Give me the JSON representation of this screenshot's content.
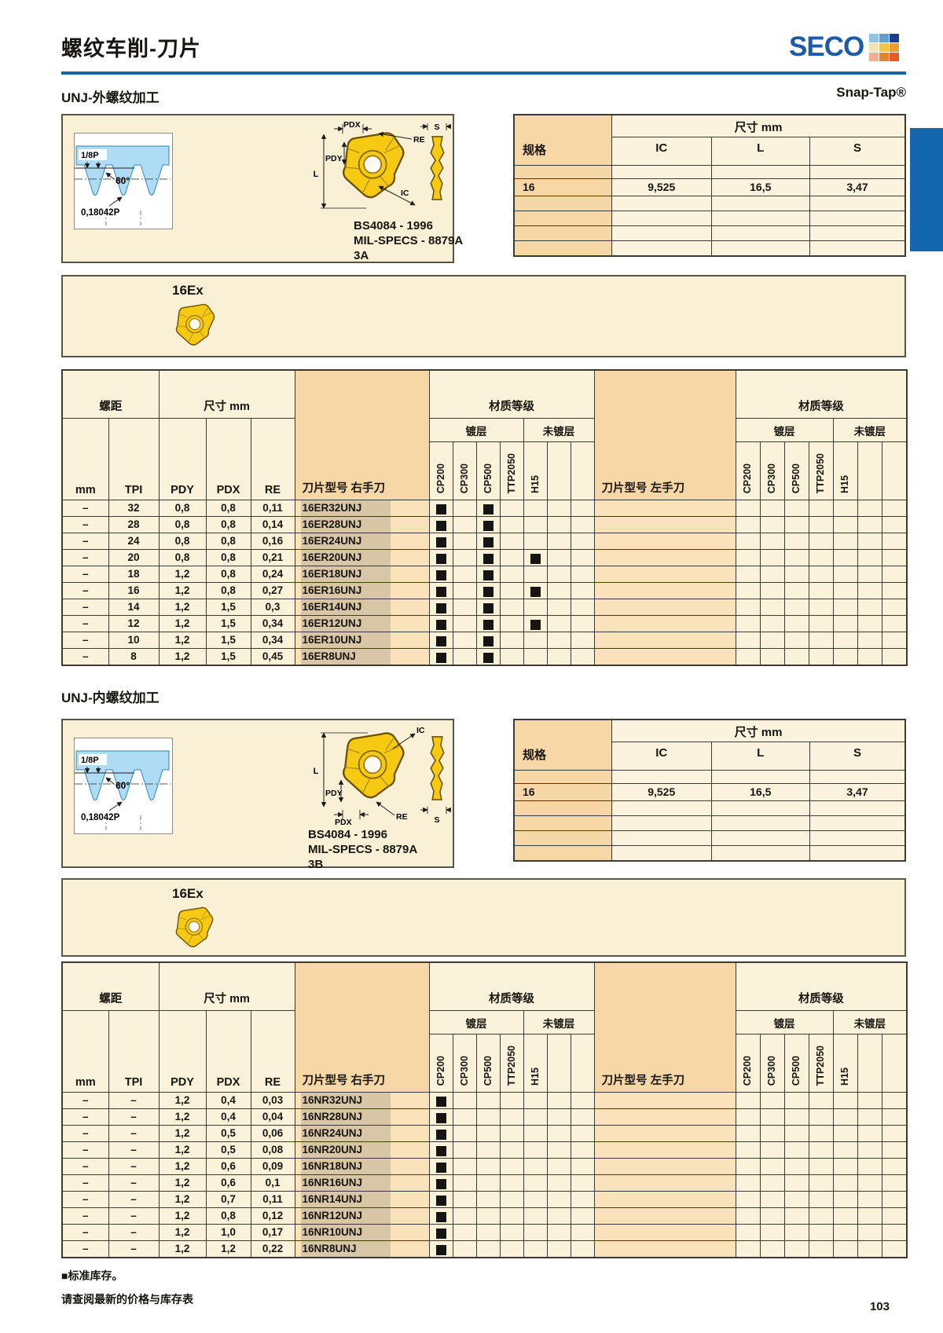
{
  "page": {
    "title": "螺纹车削-刀片",
    "brand": "SECO",
    "snap_tap": "Snap-Tap®",
    "page_number": "103"
  },
  "colors": {
    "blue": "#1266AE",
    "logo_blue": "#1D5BA6",
    "cream": "#FAF0D6",
    "orange": "#F8D7A6",
    "insert_yellow": "#F6C912",
    "logo_squares": [
      "#8FC4E6",
      "#5E9FD4",
      "#1B3F8F",
      "#F2E5B0",
      "#F4C63F",
      "#EE9D33",
      "#EFAE8C",
      "#E9822F",
      "#E25B28"
    ]
  },
  "footer": {
    "stock_note": "■标准库存。",
    "price_note": "请查阅最新的价格与库存表"
  },
  "sections": [
    {
      "title": "UNJ-外螺纹加工",
      "insert_family": "16Ex",
      "standards": [
        "BS4084 - 1996",
        "MIL-SPECS - 8879A",
        "3A"
      ],
      "profile": {
        "pitch_label": "1/8P",
        "angle_label": "60°",
        "radius_label": "0,18042P"
      },
      "dims": {
        "pdx": "PDX",
        "pdy": "PDY",
        "re": "RE",
        "l": "L",
        "ic": "IC",
        "s": "S"
      },
      "spec_table": {
        "spec_col": "规格",
        "size_group": "尺寸 mm",
        "columns": [
          "IC",
          "L",
          "S"
        ],
        "row": {
          "spec": "16",
          "values": [
            "9,525",
            "16,5",
            "3,47"
          ]
        }
      },
      "main_table": {
        "pitch_group": "螺距",
        "size_group": "尺寸 mm",
        "grade_group": "材质等级",
        "coated": "镀层",
        "uncoated": "未镀层",
        "cols": [
          "mm",
          "TPI",
          "PDY",
          "PDX",
          "RE"
        ],
        "rh_label": "刀片型号 右手刀",
        "lh_label": "刀片型号 左手刀",
        "grades": [
          "CP200",
          "CP300",
          "CP500",
          "TTP2050",
          "H15"
        ],
        "rows": [
          {
            "mm": "–",
            "tpi": "32",
            "pdy": "0,8",
            "pdx": "0,8",
            "re": "0,11",
            "designation": "16ER32UNJ",
            "stock": [
              1,
              0,
              1,
              0,
              0
            ]
          },
          {
            "mm": "–",
            "tpi": "28",
            "pdy": "0,8",
            "pdx": "0,8",
            "re": "0,14",
            "designation": "16ER28UNJ",
            "stock": [
              1,
              0,
              1,
              0,
              0
            ]
          },
          {
            "mm": "–",
            "tpi": "24",
            "pdy": "0,8",
            "pdx": "0,8",
            "re": "0,16",
            "designation": "16ER24UNJ",
            "stock": [
              1,
              0,
              1,
              0,
              0
            ]
          },
          {
            "mm": "–",
            "tpi": "20",
            "pdy": "0,8",
            "pdx": "0,8",
            "re": "0,21",
            "designation": "16ER20UNJ",
            "stock": [
              1,
              0,
              1,
              0,
              1
            ]
          },
          {
            "mm": "–",
            "tpi": "18",
            "pdy": "1,2",
            "pdx": "0,8",
            "re": "0,24",
            "designation": "16ER18UNJ",
            "stock": [
              1,
              0,
              1,
              0,
              0
            ]
          },
          {
            "mm": "–",
            "tpi": "16",
            "pdy": "1,2",
            "pdx": "0,8",
            "re": "0,27",
            "designation": "16ER16UNJ",
            "stock": [
              1,
              0,
              1,
              0,
              1
            ]
          },
          {
            "mm": "–",
            "tpi": "14",
            "pdy": "1,2",
            "pdx": "1,5",
            "re": "0,3",
            "designation": "16ER14UNJ",
            "stock": [
              1,
              0,
              1,
              0,
              0
            ]
          },
          {
            "mm": "–",
            "tpi": "12",
            "pdy": "1,2",
            "pdx": "1,5",
            "re": "0,34",
            "designation": "16ER12UNJ",
            "stock": [
              1,
              0,
              1,
              0,
              1
            ]
          },
          {
            "mm": "–",
            "tpi": "10",
            "pdy": "1,2",
            "pdx": "1,5",
            "re": "0,34",
            "designation": "16ER10UNJ",
            "stock": [
              1,
              0,
              1,
              0,
              0
            ]
          },
          {
            "mm": "–",
            "tpi": "8",
            "pdy": "1,2",
            "pdx": "1,5",
            "re": "0,45",
            "designation": "16ER8UNJ",
            "stock": [
              1,
              0,
              1,
              0,
              0
            ]
          }
        ]
      }
    },
    {
      "title": "UNJ-内螺纹加工",
      "insert_family": "16Ex",
      "standards": [
        "BS4084 - 1996",
        "MIL-SPECS - 8879A",
        "3B"
      ],
      "profile": {
        "pitch_label": "1/8P",
        "angle_label": "60°",
        "radius_label": "0,18042P"
      },
      "dims": {
        "pdx": "PDX",
        "pdy": "PDY",
        "re": "RE",
        "l": "L",
        "ic": "IC",
        "s": "S"
      },
      "spec_table": {
        "spec_col": "规格",
        "size_group": "尺寸 mm",
        "columns": [
          "IC",
          "L",
          "S"
        ],
        "row": {
          "spec": "16",
          "values": [
            "9,525",
            "16,5",
            "3,47"
          ]
        }
      },
      "main_table": {
        "pitch_group": "螺距",
        "size_group": "尺寸 mm",
        "grade_group": "材质等级",
        "coated": "镀层",
        "uncoated": "未镀层",
        "cols": [
          "mm",
          "TPI",
          "PDY",
          "PDX",
          "RE"
        ],
        "rh_label": "刀片型号 右手刀",
        "lh_label": "刀片型号 左手刀",
        "grades": [
          "CP200",
          "CP300",
          "CP500",
          "TTP2050",
          "H15"
        ],
        "rows": [
          {
            "mm": "–",
            "tpi": "–",
            "pdy": "1,2",
            "pdx": "0,4",
            "re": "0,03",
            "designation": "16NR32UNJ",
            "stock": [
              1,
              0,
              0,
              0,
              0
            ]
          },
          {
            "mm": "–",
            "tpi": "–",
            "pdy": "1,2",
            "pdx": "0,4",
            "re": "0,04",
            "designation": "16NR28UNJ",
            "stock": [
              1,
              0,
              0,
              0,
              0
            ]
          },
          {
            "mm": "–",
            "tpi": "–",
            "pdy": "1,2",
            "pdx": "0,5",
            "re": "0,06",
            "designation": "16NR24UNJ",
            "stock": [
              1,
              0,
              0,
              0,
              0
            ]
          },
          {
            "mm": "–",
            "tpi": "–",
            "pdy": "1,2",
            "pdx": "0,5",
            "re": "0,08",
            "designation": "16NR20UNJ",
            "stock": [
              1,
              0,
              0,
              0,
              0
            ]
          },
          {
            "mm": "–",
            "tpi": "–",
            "pdy": "1,2",
            "pdx": "0,6",
            "re": "0,09",
            "designation": "16NR18UNJ",
            "stock": [
              1,
              0,
              0,
              0,
              0
            ]
          },
          {
            "mm": "–",
            "tpi": "–",
            "pdy": "1,2",
            "pdx": "0,6",
            "re": "0,1",
            "designation": "16NR16UNJ",
            "stock": [
              1,
              0,
              0,
              0,
              0
            ]
          },
          {
            "mm": "–",
            "tpi": "–",
            "pdy": "1,2",
            "pdx": "0,7",
            "re": "0,11",
            "designation": "16NR14UNJ",
            "stock": [
              1,
              0,
              0,
              0,
              0
            ]
          },
          {
            "mm": "–",
            "tpi": "–",
            "pdy": "1,2",
            "pdx": "0,8",
            "re": "0,12",
            "designation": "16NR12UNJ",
            "stock": [
              1,
              0,
              0,
              0,
              0
            ]
          },
          {
            "mm": "–",
            "tpi": "–",
            "pdy": "1,2",
            "pdx": "1,0",
            "re": "0,17",
            "designation": "16NR10UNJ",
            "stock": [
              1,
              0,
              0,
              0,
              0
            ]
          },
          {
            "mm": "–",
            "tpi": "–",
            "pdy": "1,2",
            "pdx": "1,2",
            "re": "0,22",
            "designation": "16NR8UNJ",
            "stock": [
              1,
              0,
              0,
              0,
              0
            ]
          }
        ]
      }
    }
  ]
}
